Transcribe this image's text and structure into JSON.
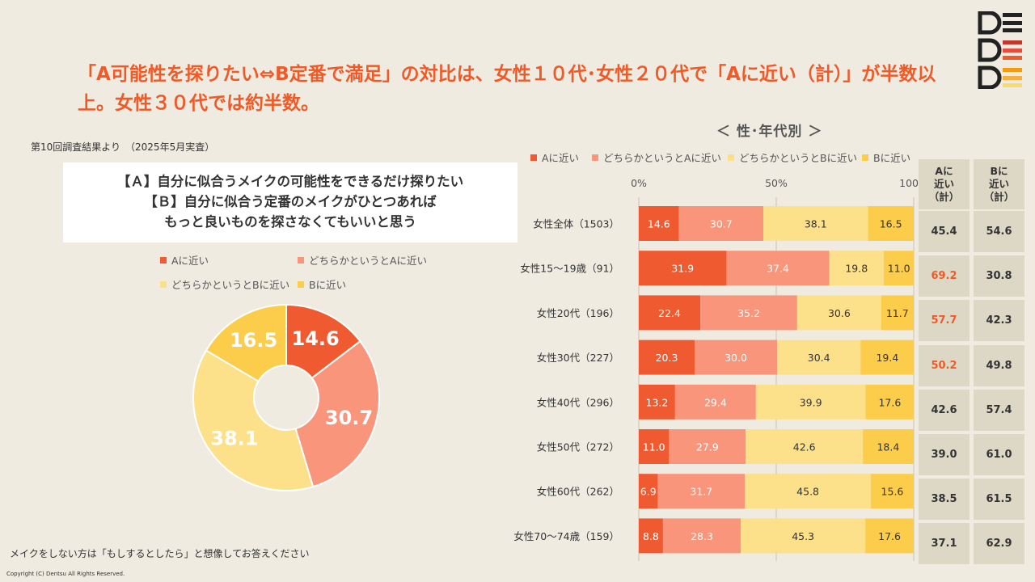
{
  "headline": "「A可能性を探りたい⇔B定番で満足」の対比は、女性１０代･女性２０代で「Aに近い（計）」が半数以上。女性３０代では約半数。",
  "survey_note": "第10回調査結果より　（2025年5月実査）",
  "question": {
    "line1": "【Ａ】自分に似合うメイクの可能性をできるだけ探りたい",
    "line2": "【Ｂ】自分に似合う定番のメイクがひとつあれば",
    "line3": "もっと良いものを探さなくてもいいと思う"
  },
  "bottom_note": "メイクをしない方は「もしするとしたら」と想像してお答えください",
  "copyright": "Copyright (C) Dentsu All Rights Reserved.",
  "colors": {
    "a": "#f05a30",
    "lean_a": "#f8957a",
    "lean_b": "#fde08a",
    "b": "#fccd4a",
    "accent": "#f05a28"
  },
  "legend": [
    "Aに近い",
    "どちらかというとAに近い",
    "どちらかというとBに近い",
    "Bに近い"
  ],
  "pie": {
    "values": [
      14.6,
      30.7,
      38.1,
      16.5
    ]
  },
  "chart_data": {
    "type": "bar",
    "orientation": "horizontal-stacked-100",
    "title": "＜ 性･年代別 ＞",
    "xlim": [
      0,
      100
    ],
    "x_ticks": [
      "0%",
      "50%",
      "100%"
    ],
    "categories": [
      "女性全体（1503）",
      "女性15～19歳（91）",
      "女性20代（196）",
      "女性30代（227）",
      "女性40代（296）",
      "女性50代（272）",
      "女性60代（262）",
      "女性70～74歳（159）"
    ],
    "series": [
      {
        "name": "Aに近い",
        "values": [
          14.6,
          31.9,
          22.4,
          20.3,
          13.2,
          11.0,
          6.9,
          8.8
        ]
      },
      {
        "name": "どちらかというとAに近い",
        "values": [
          30.7,
          37.4,
          35.2,
          30.0,
          29.4,
          27.9,
          31.7,
          28.3
        ]
      },
      {
        "name": "どちらかというとBに近い",
        "values": [
          38.1,
          19.8,
          30.6,
          30.4,
          39.9,
          42.6,
          45.8,
          45.3
        ]
      },
      {
        "name": "Bに近い",
        "values": [
          16.5,
          11.0,
          11.7,
          19.4,
          17.6,
          18.4,
          15.6,
          17.6
        ]
      }
    ]
  },
  "table": {
    "headers": [
      "Aに\n近い\n（計）",
      "Bに\n近い\n（計）"
    ],
    "a_total": [
      "45.4",
      "69.2",
      "57.7",
      "50.2",
      "42.6",
      "39.0",
      "38.5",
      "37.1"
    ],
    "b_total": [
      "54.6",
      "30.8",
      "42.3",
      "49.8",
      "57.4",
      "61.0",
      "61.5",
      "62.9"
    ],
    "a_highlight": [
      false,
      true,
      true,
      true,
      false,
      false,
      false,
      false
    ]
  }
}
